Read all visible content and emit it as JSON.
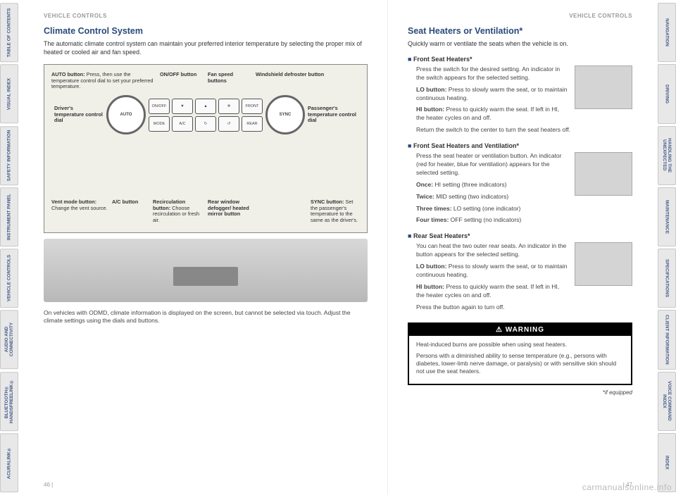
{
  "tabs_left": [
    "TABLE OF CONTENTS",
    "VISUAL INDEX",
    "SAFETY INFORMATION",
    "INSTRUMENT PANEL",
    "VEHICLE CONTROLS",
    "AUDIO AND CONNECTIVITY",
    "BLUETOOTH® HANDSFREELINK®",
    "ACURALINK®"
  ],
  "tabs_right": [
    "NAVIGATION",
    "DRIVING",
    "HANDLING THE UNEXPECTED",
    "MAINTENANCE",
    "SPECIFICATIONS",
    "CLIENT INFORMATION",
    "VOICE COMMAND INDEX",
    "INDEX"
  ],
  "running_head": "VEHICLE CONTROLS",
  "left": {
    "title": "Climate Control System",
    "lead": "The automatic climate control system can maintain your preferred interior temperature by selecting the proper mix of heated or cooled air and fan speed.",
    "labels": {
      "auto": "<b>AUTO button:</b> Press, then use the temperature control dial to set your preferred temperature.",
      "onoff": "<b>ON/OFF button</b>",
      "fan": "<b>Fan speed buttons</b>",
      "wind": "<b>Windshield defroster button</b>",
      "driver": "<b>Driver's temperature control dial</b>",
      "pass": "<b>Passenger's temperature control dial</b>",
      "vent": "<b>Vent mode button:</b> Change the vent source.",
      "ac": "<b>A/C button</b>",
      "recirc": "<b>Recirculation button:</b> Choose recirculation or fresh air.",
      "rear": "<b>Rear window defogger/ heated mirror button</b>",
      "sync": "<b>SYNC button:</b> Set the passenger's temperature to the same as the driver's."
    },
    "dials": {
      "l": "AUTO",
      "r": "SYNC"
    },
    "btns": [
      "ON/OFF",
      "▼",
      "▲",
      "❄",
      "FRONT",
      "MODE",
      "A/C",
      "↻",
      "↺",
      "REAR"
    ],
    "note": "On vehicles with ODMD, climate information is displayed on the screen, but cannot be selected via touch. Adjust the climate settings using the dials and buttons.",
    "page": "46  |"
  },
  "right": {
    "title": "Seat Heaters or Ventilation*",
    "lead": "Quickly warm or ventilate the seats when the vehicle is on.",
    "s1": {
      "h": "Front Seat Heaters*",
      "p1": "Press the switch for the desired setting. An indicator in the switch appears for the selected setting.",
      "p2": "<b>LO button:</b> Press to slowly warm the seat, or to maintain continuous heating.",
      "p3": "<b>HI button:</b> Press to quickly warm the seat. If left in HI, the heater cycles on and off.",
      "p4": "Return the switch to the center to turn the seat heaters off."
    },
    "s2": {
      "h": "Front Seat Heaters and Ventilation*",
      "p1": "Press the seat heater or ventilation button. An indicator (red for heater, blue for ventilation) appears for the selected setting.",
      "p2": "<b>Once:</b> HI setting (three indicators)",
      "p3": "<b>Twice:</b> MID setting (two indicators)",
      "p4": "<b>Three times:</b> LO setting (one indicator)",
      "p5": "<b>Four times:</b> OFF setting (no indicators)"
    },
    "s3": {
      "h": "Rear Seat Heaters*",
      "p1": "You can heat the two outer rear seats. An indicator in the button appears for the selected setting.",
      "p2": "<b>LO button:</b> Press to slowly warm the seat, or to maintain continuous heating.",
      "p3": "<b>HI button:</b> Press to quickly warm the seat. If left in HI, the heater cycles on and off.",
      "p4": "Press the button again to turn off."
    },
    "warn": {
      "h": "WARNING",
      "p1": "Heat-induced burns are possible when using seat heaters.",
      "p2": "Persons with a diminished ability to sense temperature (e.g., persons with diabetes, lower-limb nerve damage, or paralysis) or with sensitive skin should not use the seat heaters."
    },
    "equipped": "*if equipped",
    "page": "|  47"
  },
  "watermark": "carmanualsonline.info"
}
